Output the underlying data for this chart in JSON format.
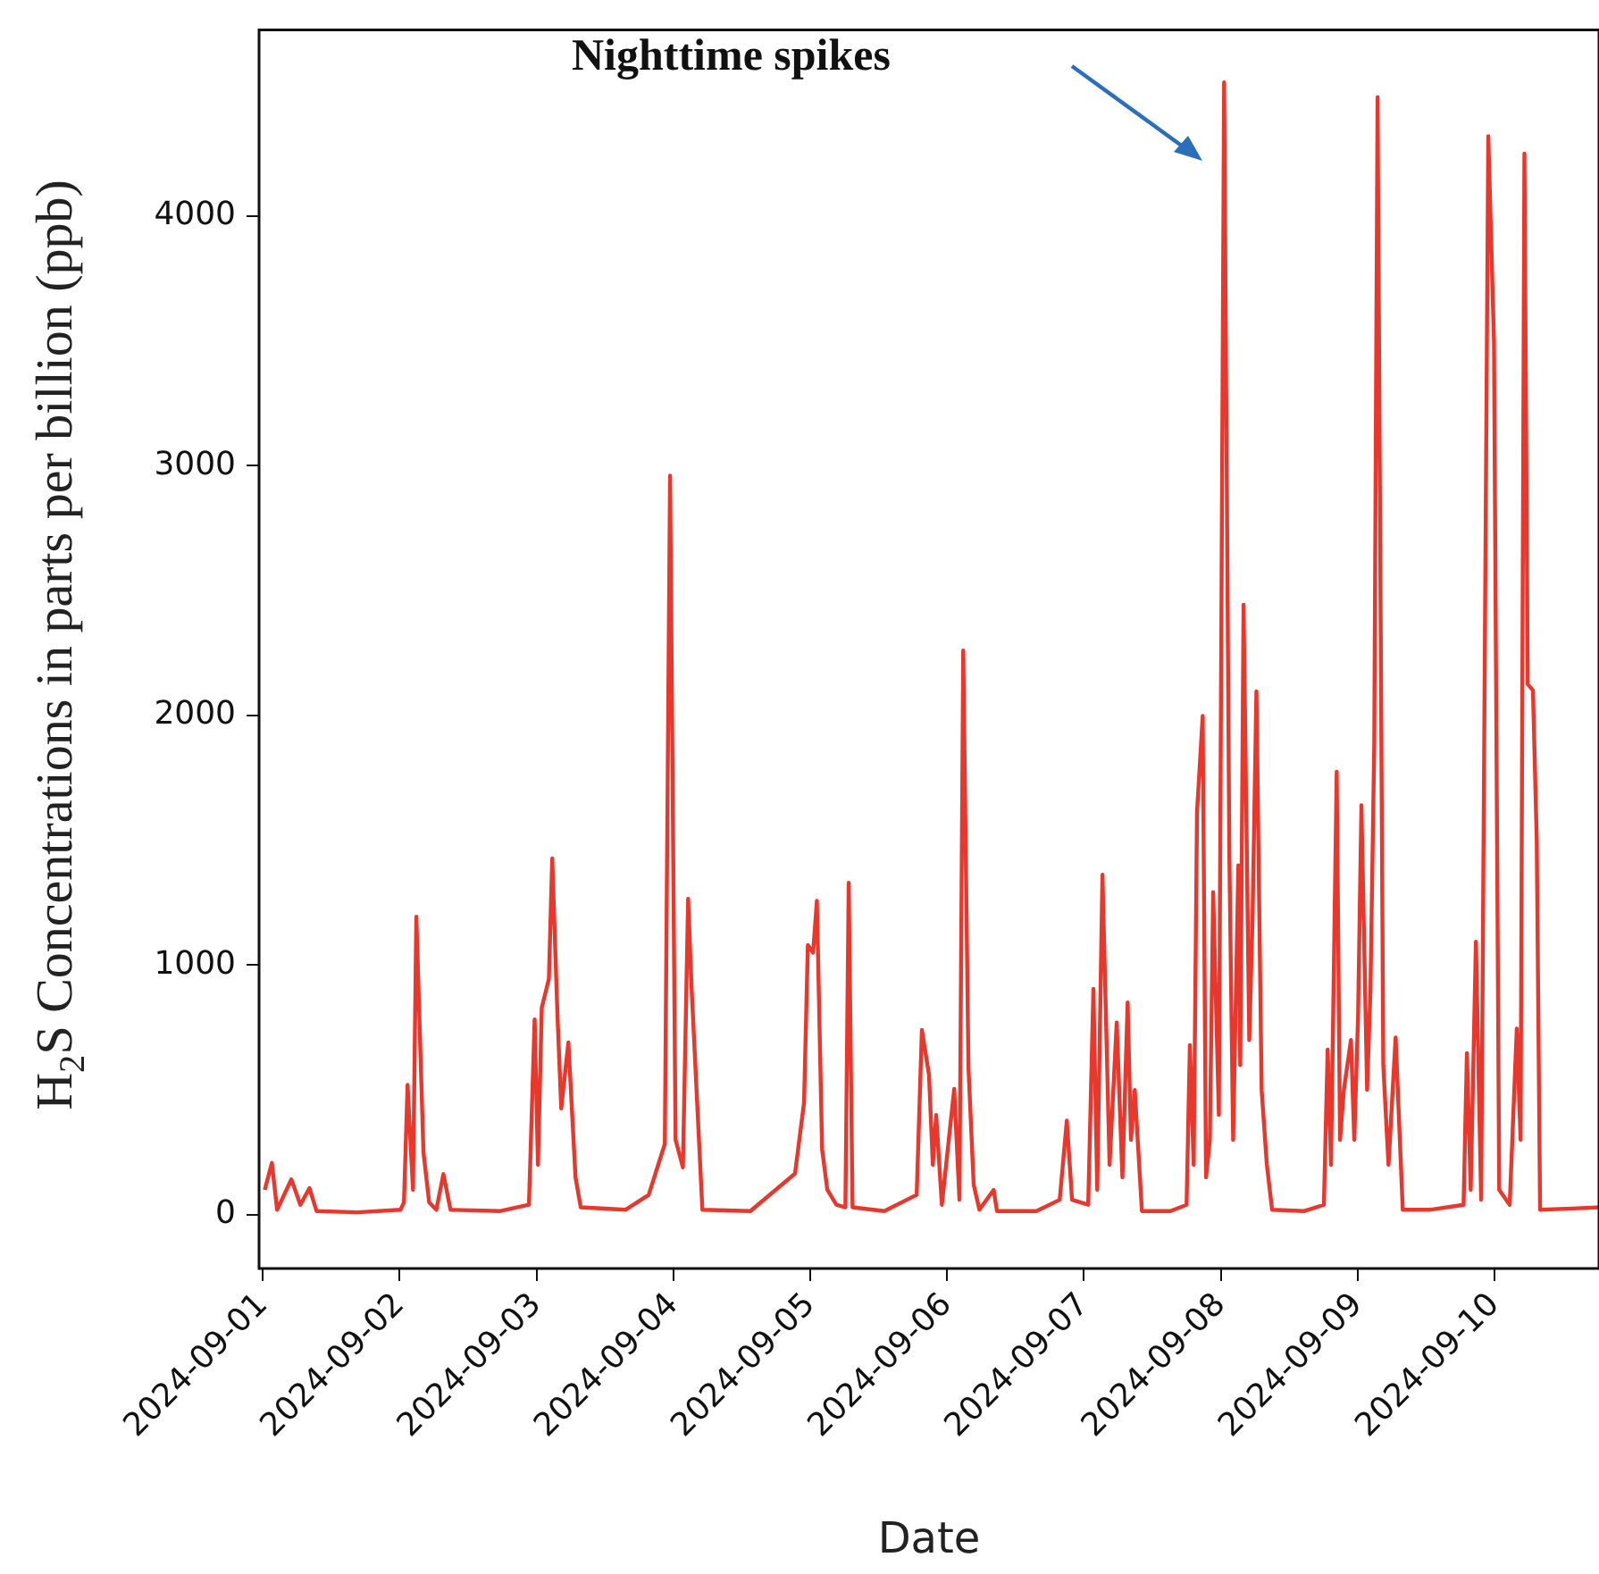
{
  "chart_data": {
    "type": "line",
    "xlabel": "Date",
    "ylabel": "H$_{2}$S Concentrations in parts per billion (ppb)",
    "annotations": [
      "Nighttime spikes"
    ],
    "xlim": [
      "2024-08-31T23:20",
      "2024-09-10T18:20"
    ],
    "xticks": [
      "2024-09-01",
      "2024-09-02",
      "2024-09-03",
      "2024-09-04",
      "2024-09-05",
      "2024-09-06",
      "2024-09-07",
      "2024-09-08",
      "2024-09-09",
      "2024-09-10"
    ],
    "ylim": [
      -215,
      4745
    ],
    "yticks": [
      0,
      1000,
      2000,
      3000,
      4000
    ],
    "grid": false,
    "legend": false,
    "marker": "none",
    "line_style": "solid",
    "series": [
      {
        "color": "#e8372c",
        "x": [
          "2024-09-01T00:20",
          "2024-09-01T01:35",
          "2024-09-01T02:30",
          "2024-09-01T05:00",
          "2024-09-01T06:35",
          "2024-09-01T08:10",
          "2024-09-01T09:25",
          "2024-09-01T16:35",
          "2024-09-02T00:08",
          "2024-09-02T00:45",
          "2024-09-02T01:23",
          "2024-09-02T02:20",
          "2024-09-02T02:55",
          "2024-09-02T04:10",
          "2024-09-02T05:10",
          "2024-09-02T06:25",
          "2024-09-02T07:40",
          "2024-09-02T08:55",
          "2024-09-02T17:40",
          "2024-09-02T22:40",
          "2024-09-02T23:40",
          "2024-09-03T00:15",
          "2024-09-03T00:55",
          "2024-09-03T02:10",
          "2024-09-03T02:45",
          "2024-09-03T03:40",
          "2024-09-03T04:20",
          "2024-09-03T05:35",
          "2024-09-03T06:50",
          "2024-09-03T07:45",
          "2024-09-03T15:35",
          "2024-09-03T19:40",
          "2024-09-03T22:30",
          "2024-09-03T23:25",
          "2024-09-04T00:23",
          "2024-09-04T01:40",
          "2024-09-04T02:35",
          "2024-09-04T03:10",
          "2024-09-04T04:10",
          "2024-09-04T05:05",
          "2024-09-04T13:30",
          "2024-09-04T21:20",
          "2024-09-04T22:55",
          "2024-09-04T23:35",
          "2024-09-05T00:30",
          "2024-09-05T01:10",
          "2024-09-05T02:05",
          "2024-09-05T03:00",
          "2024-09-05T04:35",
          "2024-09-05T06:10",
          "2024-09-05T06:45",
          "2024-09-05T07:25",
          "2024-09-05T13:00",
          "2024-09-05T18:40",
          "2024-09-05T19:35",
          "2024-09-05T20:50",
          "2024-09-05T21:30",
          "2024-09-05T22:05",
          "2024-09-05T23:05",
          "2024-09-06T01:15",
          "2024-09-06T02:10",
          "2024-09-06T02:50",
          "2024-09-06T03:45",
          "2024-09-06T04:40",
          "2024-09-06T05:40",
          "2024-09-06T08:10",
          "2024-09-06T08:45",
          "2024-09-06T15:40",
          "2024-09-06T19:45",
          "2024-09-06T21:00",
          "2024-09-06T21:55",
          "2024-09-07T00:45",
          "2024-09-07T01:40",
          "2024-09-07T02:20",
          "2024-09-07T03:15",
          "2024-09-07T04:30",
          "2024-09-07T05:45",
          "2024-09-07T06:45",
          "2024-09-07T07:40",
          "2024-09-07T08:15",
          "2024-09-07T08:55",
          "2024-09-07T10:10",
          "2024-09-07T15:10",
          "2024-09-07T18:00",
          "2024-09-07T18:35",
          "2024-09-07T19:15",
          "2024-09-07T19:50",
          "2024-09-07T20:50",
          "2024-09-07T21:25",
          "2024-09-07T22:05",
          "2024-09-07T22:40",
          "2024-09-07T23:40",
          "2024-09-08T00:35",
          "2024-09-08T01:30",
          "2024-09-08T02:10",
          "2024-09-08T03:05",
          "2024-09-08T03:25",
          "2024-09-08T04:00",
          "2024-09-08T05:00",
          "2024-09-08T05:35",
          "2024-09-08T06:15",
          "2024-09-08T07:10",
          "2024-09-08T08:05",
          "2024-09-08T09:00",
          "2024-09-08T14:40",
          "2024-09-08T18:05",
          "2024-09-08T18:45",
          "2024-09-08T19:20",
          "2024-09-08T20:20",
          "2024-09-08T20:55",
          "2024-09-08T21:35",
          "2024-09-08T22:50",
          "2024-09-08T23:25",
          "2024-09-09T00:05",
          "2024-09-09T00:40",
          "2024-09-09T01:40",
          "2024-09-09T02:15",
          "2024-09-09T02:55",
          "2024-09-09T03:30",
          "2024-09-09T04:30",
          "2024-09-09T05:25",
          "2024-09-09T06:40",
          "2024-09-09T07:55",
          "2024-09-09T12:35",
          "2024-09-09T18:35",
          "2024-09-09T19:10",
          "2024-09-09T19:50",
          "2024-09-09T20:45",
          "2024-09-09T21:40",
          "2024-09-09T22:55",
          "2024-09-09T23:55",
          "2024-09-10T00:50",
          "2024-09-10T02:40",
          "2024-09-10T03:55",
          "2024-09-10T04:35",
          "2024-09-10T05:15",
          "2024-09-10T05:50",
          "2024-09-10T06:45",
          "2024-09-10T07:25",
          "2024-09-10T08:00",
          "2024-09-10T13:40",
          "2024-09-10T18:20"
        ],
        "values": [
          100,
          208,
          20,
          142,
          40,
          107,
          15,
          10,
          20,
          50,
          520,
          100,
          1194,
          250,
          50,
          20,
          163,
          20,
          15,
          40,
          782,
          200,
          830,
          945,
          1427,
          800,
          426,
          690,
          150,
          30,
          20,
          80,
          284,
          2960,
          300,
          190,
          1265,
          920,
          450,
          20,
          15,
          165,
          450,
          1080,
          1050,
          1257,
          262,
          100,
          40,
          30,
          1330,
          30,
          15,
          80,
          740,
          560,
          200,
          400,
          40,
          504,
          60,
          2260,
          590,
          120,
          20,
          100,
          15,
          15,
          60,
          377,
          60,
          40,
          905,
          100,
          1362,
          200,
          770,
          150,
          850,
          300,
          500,
          15,
          15,
          40,
          680,
          200,
          1613,
          1998,
          150,
          300,
          1292,
          400,
          4535,
          1450,
          300,
          1400,
          600,
          2443,
          700,
          1200,
          2096,
          500,
          200,
          20,
          15,
          40,
          662,
          200,
          1774,
          300,
          500,
          700,
          300,
          800,
          1640,
          500,
          900,
          1885,
          4476,
          600,
          200,
          710,
          20,
          20,
          40,
          647,
          100,
          1094,
          60,
          4320,
          3496,
          100,
          40,
          746,
          300,
          4250,
          2125,
          2100,
          1500,
          20,
          25,
          30
        ]
      }
    ]
  }
}
